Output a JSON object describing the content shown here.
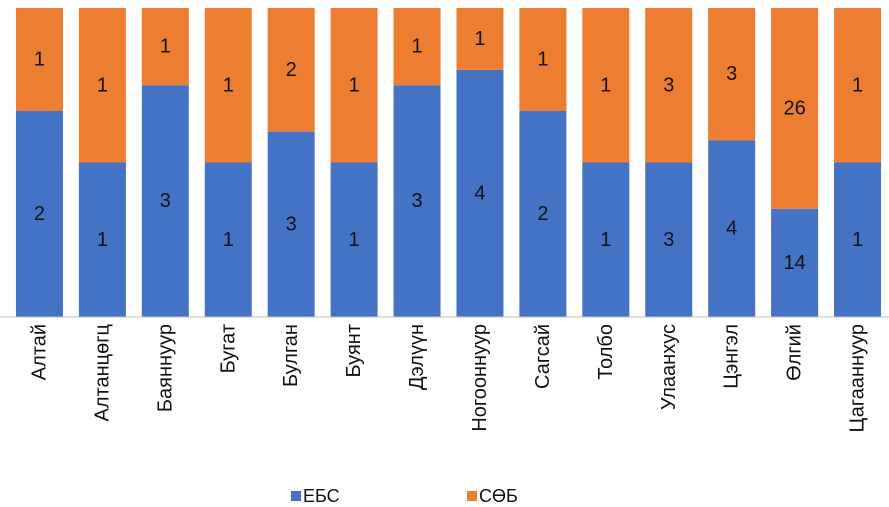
{
  "chart_data": {
    "type": "bar",
    "stacked": true,
    "percent_stacked": true,
    "orientation": "vertical",
    "categories": [
      "Алтай",
      "Алтанцөгц",
      "Баяннуур",
      "Бугат",
      "Булган",
      "Буянт",
      "Дэлүүн",
      "Ногооннуур",
      "Сагсай",
      "Толбо",
      "Улаанхус",
      "Цэнгэл",
      "Өлгий",
      "Цагааннуур"
    ],
    "series": [
      {
        "name": "ЕБС",
        "color": "#4472C4",
        "values": [
          2,
          1,
          3,
          1,
          3,
          1,
          3,
          4,
          2,
          1,
          3,
          4,
          14,
          1
        ]
      },
      {
        "name": "СӨБ",
        "color": "#ED7D31",
        "values": [
          1,
          1,
          1,
          1,
          2,
          1,
          1,
          1,
          1,
          1,
          3,
          3,
          26,
          1
        ]
      }
    ],
    "title": "",
    "xlabel": "",
    "ylabel": "",
    "data_labels": true,
    "grid": false,
    "legend_position": "bottom"
  }
}
